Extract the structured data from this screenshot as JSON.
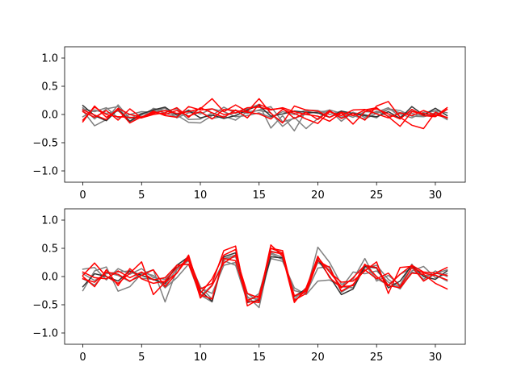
{
  "chart_data": [
    {
      "type": "line",
      "title": "",
      "xlabel": "",
      "ylabel": "",
      "xlim": [
        -1.55,
        32.55
      ],
      "ylim": [
        -1.2,
        1.2
      ],
      "x_ticks": [
        0,
        5,
        10,
        15,
        20,
        25,
        30
      ],
      "y_ticks": [
        1.0,
        0.5,
        0.0,
        -0.5,
        -1.0
      ],
      "x_tick_labels": [
        "0",
        "5",
        "10",
        "15",
        "20",
        "25",
        "30"
      ],
      "y_tick_labels": [
        "1.0",
        "0.5",
        "0.0",
        "−0.5",
        "−1.0"
      ],
      "grid": false,
      "x": [
        0,
        1,
        2,
        3,
        4,
        5,
        6,
        7,
        8,
        9,
        10,
        11,
        12,
        13,
        14,
        15,
        16,
        17,
        18,
        19,
        20,
        21,
        22,
        23,
        24,
        25,
        26,
        27,
        28,
        29,
        30,
        31
      ],
      "series": [
        {
          "color": "#808080",
          "values": [
            0.07,
            -0.2,
            -0.09,
            0.17,
            -0.07,
            -0.06,
            0.11,
            0.06,
            0.1,
            -0.09,
            -0.08,
            0.03,
            -0.05,
            0.07,
            0.02,
            0.08,
            0.14,
            -0.13,
            -0.07,
            0.01,
            0.05,
            0.06,
            -0.05,
            0.03,
            0.0,
            -0.06,
            0.1,
            0.07,
            -0.03,
            -0.04,
            0.01,
            -0.07
          ]
        },
        {
          "color": "#808080",
          "values": [
            0.1,
            0.05,
            0.12,
            -0.06,
            0.0,
            0.05,
            0.04,
            0.07,
            -0.01,
            -0.14,
            -0.15,
            -0.02,
            0.13,
            0.02,
            0.1,
            0.18,
            -0.24,
            -0.02,
            -0.29,
            0.06,
            0.02,
            0.08,
            -0.12,
            0.04,
            -0.05,
            0.06,
            -0.03,
            0.01,
            -0.06,
            0.04,
            0.06,
            -0.07
          ]
        },
        {
          "color": "#808080",
          "values": [
            -0.04,
            0.08,
            0.02,
            0.06,
            -0.07,
            0.02,
            0.06,
            0.11,
            -0.06,
            0.03,
            0.04,
            -0.07,
            -0.03,
            -0.1,
            0.05,
            0.07,
            0.03,
            -0.21,
            -0.05,
            -0.25,
            -0.07,
            0.08,
            0.02,
            -0.05,
            0.05,
            0.04,
            0.12,
            -0.04,
            0.06,
            0.0,
            0.07,
            0.03
          ]
        },
        {
          "color": "#808080",
          "values": [
            0.12,
            -0.08,
            0.1,
            0.14,
            -0.14,
            -0.01,
            0.1,
            0.02,
            -0.04,
            0.08,
            0.01,
            0.1,
            0.05,
            -0.04,
            -0.02,
            0.03,
            -0.05,
            0.05,
            0.0,
            0.08,
            0.07,
            0.0,
            0.06,
            -0.02,
            -0.08,
            0.02,
            0.09,
            0.03,
            0.02,
            -0.03,
            0.03,
            -0.09
          ]
        },
        {
          "color": "#333333",
          "values": [
            0.16,
            -0.02,
            -0.11,
            0.09,
            -0.12,
            0.01,
            0.08,
            0.13,
            -0.01,
            0.07,
            -0.06,
            -0.01,
            -0.07,
            -0.02,
            0.08,
            0.16,
            -0.03,
            0.01,
            0.06,
            0.04,
            0.03,
            -0.05,
            0.06,
            0.02,
            -0.02,
            -0.04,
            0.05,
            -0.07,
            0.14,
            -0.01,
            0.11,
            -0.02
          ]
        },
        {
          "color": "#ff0000",
          "values": [
            -0.13,
            0.15,
            -0.05,
            0.08,
            -0.15,
            -0.04,
            0.02,
            0.07,
            0.02,
            0.05,
            0.1,
            0.28,
            0.05,
            0.17,
            0.05,
            0.28,
            0.02,
            -0.15,
            0.15,
            0.08,
            0.06,
            -0.05,
            0.04,
            -0.02,
            0.08,
            0.12,
            -0.04,
            -0.21,
            0.05,
            0.02,
            -0.03,
            0.12
          ]
        },
        {
          "color": "#ff0000",
          "values": [
            0.05,
            -0.05,
            0.07,
            -0.1,
            0.1,
            -0.06,
            0.06,
            -0.02,
            -0.05,
            0.14,
            0.08,
            0.1,
            0.0,
            0.03,
            0.12,
            0.13,
            0.08,
            0.12,
            0.05,
            0.0,
            -0.03,
            -0.12,
            0.03,
            -0.17,
            0.05,
            0.1,
            0.01,
            -0.08,
            0.09,
            -0.02,
            -0.04,
            0.09
          ]
        },
        {
          "color": "#ff0000",
          "values": [
            -0.1,
            0.13,
            0.0,
            -0.04,
            -0.05,
            -0.06,
            0.0,
            0.03,
            0.12,
            -0.05,
            0.12,
            0.03,
            -0.05,
            0.08,
            -0.06,
            0.18,
            0.09,
            0.11,
            -0.07,
            0.04,
            -0.09,
            0.07,
            -0.07,
            0.02,
            -0.1,
            0.15,
            0.23,
            -0.05,
            -0.19,
            -0.25,
            0.04,
            -0.06
          ]
        },
        {
          "color": "#ff0000",
          "values": [
            0.08,
            -0.01,
            -0.09,
            0.11,
            0.0,
            -0.05,
            0.04,
            0.0,
            0.07,
            -0.03,
            0.05,
            -0.08,
            0.09,
            0.07,
            0.04,
            0.01,
            -0.08,
            0.09,
            0.02,
            -0.08,
            -0.16,
            0.05,
            -0.02,
            0.08,
            0.09,
            0.01,
            -0.06,
            0.03,
            -0.02,
            0.07,
            -0.01,
            -0.05
          ]
        }
      ]
    },
    {
      "type": "line",
      "title": "",
      "xlabel": "",
      "ylabel": "",
      "xlim": [
        -1.55,
        32.55
      ],
      "ylim": [
        -1.2,
        1.2
      ],
      "x_ticks": [
        0,
        5,
        10,
        15,
        20,
        25,
        30
      ],
      "y_ticks": [
        1.0,
        0.5,
        0.0,
        -0.5,
        -1.0
      ],
      "x_tick_labels": [
        "0",
        "5",
        "10",
        "15",
        "20",
        "25",
        "30"
      ],
      "y_tick_labels": [
        "1.0",
        "0.5",
        "0.0",
        "−0.5",
        "−1.0"
      ],
      "grid": false,
      "x": [
        0,
        1,
        2,
        3,
        4,
        5,
        6,
        7,
        8,
        9,
        10,
        11,
        12,
        13,
        14,
        15,
        16,
        17,
        18,
        19,
        20,
        21,
        22,
        23,
        24,
        25,
        26,
        27,
        28,
        29,
        30,
        31
      ],
      "series": [
        {
          "color": "#808080",
          "values": [
            -0.25,
            0.1,
            0.17,
            -0.26,
            -0.18,
            0.05,
            0.12,
            -0.45,
            0.12,
            0.35,
            -0.33,
            -0.45,
            0.32,
            0.38,
            -0.35,
            -0.55,
            0.42,
            0.34,
            -0.35,
            -0.28,
            0.52,
            0.25,
            -0.14,
            -0.05,
            0.32,
            -0.08,
            0.02,
            -0.15,
            0.22,
            -0.08,
            0.05,
            0.12
          ]
        },
        {
          "color": "#808080",
          "values": [
            0.13,
            0.16,
            -0.06,
            0.14,
            0.04,
            0.14,
            -0.02,
            -0.05,
            0.16,
            0.3,
            -0.18,
            -0.4,
            0.3,
            0.35,
            -0.3,
            -0.45,
            0.4,
            0.3,
            -0.25,
            -0.3,
            0.15,
            0.18,
            -0.28,
            -0.15,
            0.15,
            0.2,
            -0.05,
            -0.2,
            0.1,
            0.18,
            -0.02,
            0.05
          ]
        },
        {
          "color": "#808080",
          "values": [
            0.05,
            -0.07,
            0.05,
            0.08,
            0.1,
            -0.03,
            -0.05,
            -0.15,
            0.13,
            0.28,
            -0.2,
            -0.3,
            0.2,
            0.25,
            -0.38,
            -0.4,
            0.32,
            0.27,
            -0.2,
            -0.32,
            -0.08,
            -0.06,
            -0.18,
            -0.2,
            0.2,
            -0.04,
            -0.15,
            0.04,
            0.15,
            -0.05,
            0.1,
            0.0
          ]
        },
        {
          "color": "#808080",
          "values": [
            -0.04,
            -0.15,
            0.07,
            0.02,
            -0.09,
            0.07,
            0.02,
            -0.2,
            -0.02,
            0.22,
            -0.35,
            -0.15,
            0.28,
            0.2,
            -0.45,
            -0.3,
            0.45,
            0.4,
            -0.4,
            -0.2,
            0.25,
            0.12,
            -0.2,
            0.08,
            0.05,
            0.1,
            -0.1,
            -0.22,
            0.08,
            0.02,
            0.03,
            -0.08
          ]
        },
        {
          "color": "#333333",
          "values": [
            -0.18,
            0.05,
            0.0,
            -0.08,
            0.1,
            0.02,
            -0.05,
            -0.12,
            0.2,
            0.35,
            -0.25,
            -0.44,
            0.35,
            0.42,
            -0.46,
            -0.42,
            0.35,
            0.33,
            -0.35,
            -0.22,
            0.3,
            0.0,
            -0.32,
            -0.22,
            0.18,
            0.15,
            -0.2,
            -0.08,
            0.2,
            0.0,
            -0.05,
            0.1
          ]
        },
        {
          "color": "#ff0000",
          "values": [
            0.02,
            0.24,
            0.0,
            -0.12,
            0.06,
            0.26,
            -0.32,
            -0.1,
            0.06,
            0.34,
            -0.22,
            -0.12,
            0.46,
            0.54,
            -0.52,
            -0.4,
            0.56,
            0.36,
            -0.46,
            -0.2,
            0.34,
            0.08,
            -0.1,
            -0.08,
            0.1,
            0.26,
            -0.3,
            0.16,
            0.18,
            -0.08,
            0.06,
            0.16
          ]
        },
        {
          "color": "#ff0000",
          "values": [
            -0.04,
            -0.1,
            0.08,
            0.04,
            -0.08,
            0.02,
            0.12,
            -0.18,
            0.06,
            0.38,
            -0.3,
            -0.04,
            0.38,
            0.48,
            -0.44,
            -0.46,
            0.5,
            0.46,
            -0.42,
            -0.3,
            0.28,
            0.16,
            -0.26,
            -0.14,
            0.12,
            -0.04,
            0.06,
            -0.18,
            0.16,
            0.06,
            0.02,
            -0.06
          ]
        },
        {
          "color": "#ff0000",
          "values": [
            0.0,
            -0.18,
            0.12,
            -0.16,
            0.14,
            -0.04,
            -0.12,
            -0.08,
            0.16,
            0.3,
            -0.38,
            -0.16,
            0.24,
            0.38,
            -0.3,
            -0.38,
            0.5,
            0.42,
            -0.44,
            -0.24,
            0.36,
            -0.02,
            -0.2,
            -0.02,
            0.2,
            0.16,
            -0.16,
            -0.2,
            0.06,
            0.04,
            -0.12,
            -0.22
          ]
        },
        {
          "color": "#ff0000",
          "values": [
            0.08,
            -0.02,
            -0.04,
            0.1,
            -0.02,
            0.08,
            -0.06,
            -0.02,
            0.2,
            0.22,
            -0.32,
            -0.4,
            0.32,
            0.28,
            -0.42,
            -0.34,
            0.44,
            0.4,
            -0.34,
            -0.26,
            0.34,
            0.08,
            -0.18,
            -0.16,
            0.22,
            0.0,
            -0.16,
            0.04,
            0.2,
            0.08,
            0.06,
            0.02
          ]
        }
      ]
    }
  ]
}
